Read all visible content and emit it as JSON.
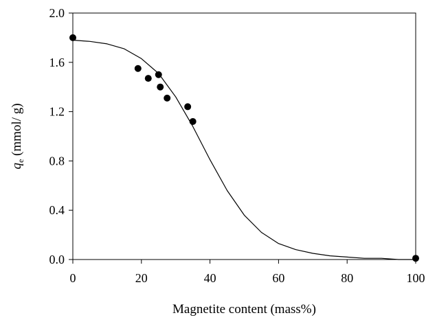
{
  "chart_data": {
    "type": "scatter",
    "xlabel": "Magnetite content (mass%)",
    "ylabel_symbol": "q",
    "ylabel_subscript": "e",
    "ylabel_unit": " (mmol/ g)",
    "xlim": [
      0,
      100
    ],
    "ylim": [
      0.0,
      2.0
    ],
    "x_ticks": [
      0,
      20,
      40,
      60,
      80,
      100
    ],
    "x_tick_labels": [
      "0",
      "20",
      "40",
      "60",
      "80",
      "100"
    ],
    "y_ticks": [
      0.0,
      0.4,
      0.8,
      1.2,
      1.6,
      2.0
    ],
    "y_tick_labels": [
      "0.0",
      "0.4",
      "0.8",
      "1.2",
      "1.6",
      "2.0"
    ],
    "grid": false,
    "legend": "none",
    "series": [
      {
        "type": "scatter",
        "marker": "filled-circle",
        "color": "#000000",
        "x": [
          0,
          19,
          22,
          25,
          25.5,
          27.5,
          33.5,
          35,
          100
        ],
        "y": [
          1.8,
          1.55,
          1.47,
          1.5,
          1.4,
          1.31,
          1.24,
          1.12,
          0.01
        ]
      },
      {
        "type": "line",
        "style": "solid",
        "color": "#000000",
        "x": [
          0,
          5,
          10,
          15,
          20,
          25,
          30,
          35,
          40,
          45,
          50,
          55,
          60,
          65,
          70,
          75,
          80,
          85,
          90,
          95,
          100
        ],
        "y": [
          1.78,
          1.77,
          1.75,
          1.71,
          1.63,
          1.51,
          1.32,
          1.08,
          0.81,
          0.56,
          0.36,
          0.22,
          0.13,
          0.08,
          0.05,
          0.03,
          0.02,
          0.01,
          0.01,
          0.0,
          0.0
        ]
      }
    ]
  }
}
